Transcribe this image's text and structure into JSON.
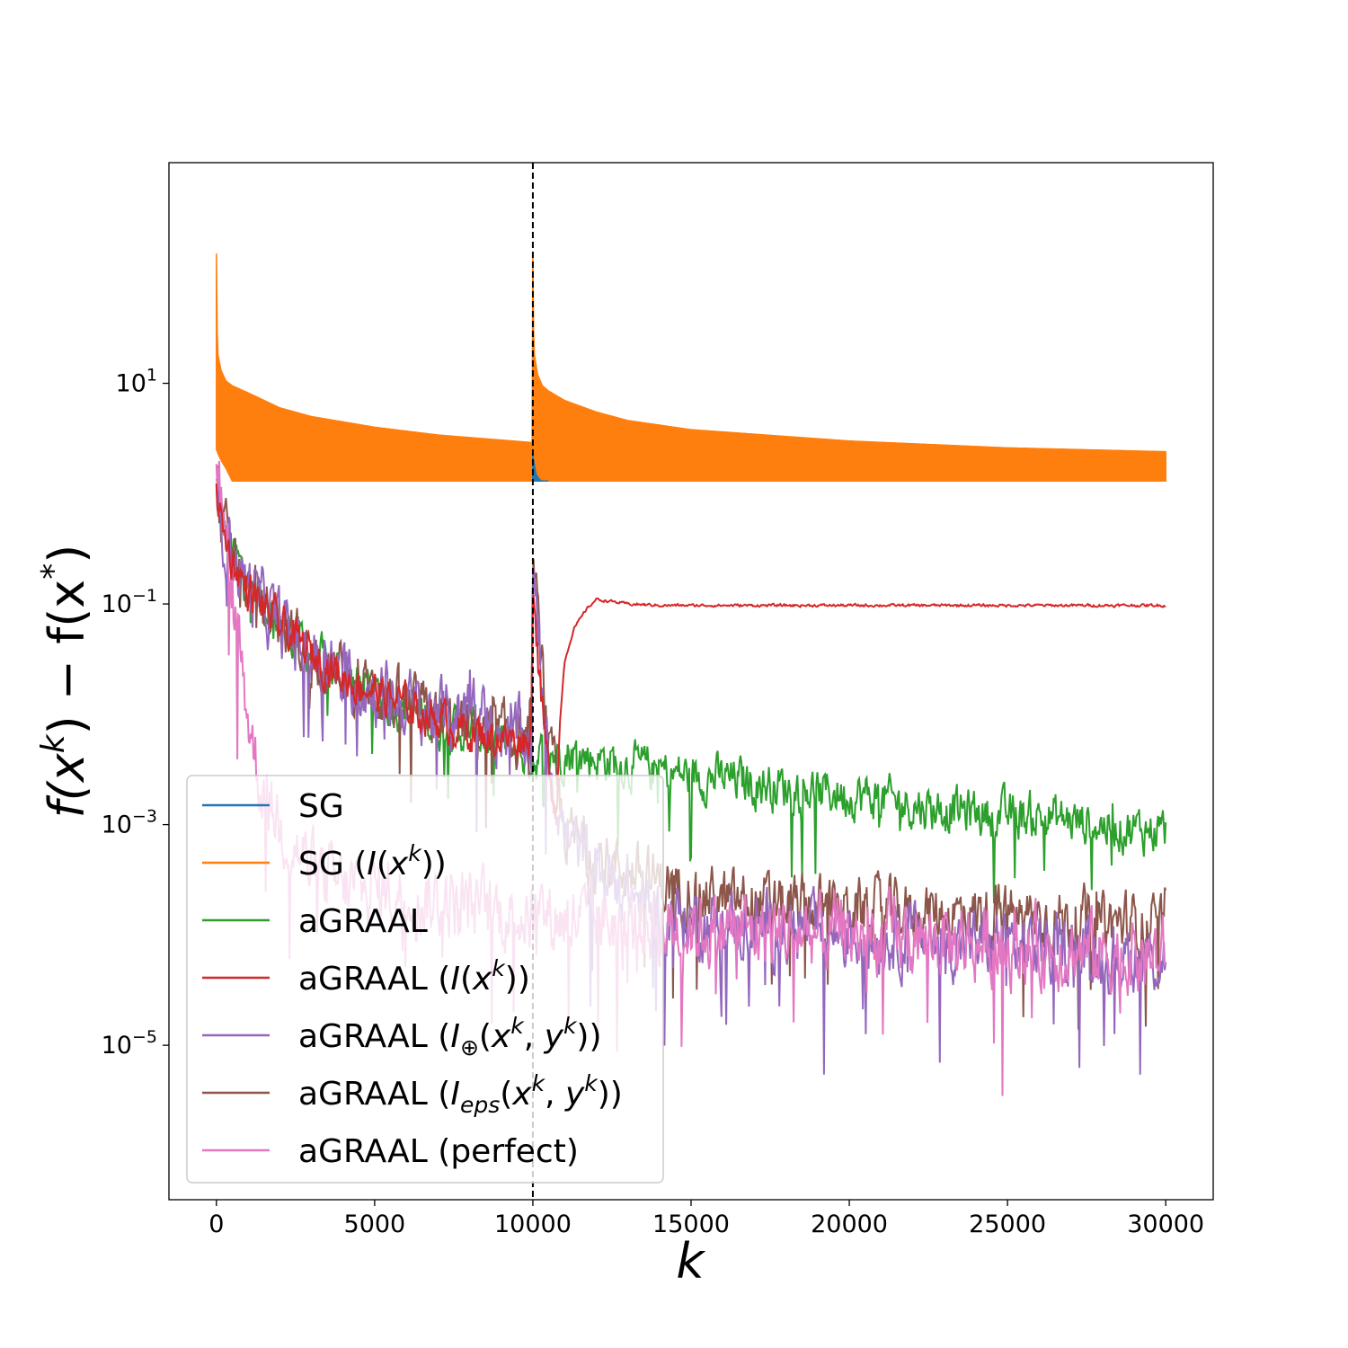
{
  "chart_data": {
    "type": "line",
    "title": "",
    "xlabel": "k",
    "ylabel": "f(x^k) − f(x^*)",
    "yscale": "log",
    "xlim": [
      -1500,
      31500
    ],
    "ylim_exp": [
      -6.4,
      3.0
    ],
    "x_ticks": [
      0,
      5000,
      10000,
      15000,
      20000,
      25000,
      30000
    ],
    "x_tick_labels": [
      "0",
      "5000",
      "10000",
      "15000",
      "20000",
      "25000",
      "30000"
    ],
    "y_ticks_exp": [
      1,
      -1,
      -3,
      -5
    ],
    "y_tick_base": "10",
    "y_tick_exps": [
      "1",
      "−1",
      "−3",
      "−5"
    ],
    "vline_x": 10000,
    "legend_position": "lower-left",
    "series": [
      {
        "key": "sg",
        "name": "SG",
        "color": "#1f77b4",
        "note": "oscillates between upper and lower envelopes; visible only near the restart at k = 10000",
        "x": [
          10000,
          10100,
          10200,
          10300,
          10500
        ],
        "upper": [
          2.2,
          1.5,
          1.35,
          1.3,
          1.3
        ],
        "lower": [
          1.3,
          1.3,
          1.3,
          1.3,
          1.3
        ]
      },
      {
        "key": "sg_i",
        "name": "SG (I(x^k))",
        "color": "#ff7f0e",
        "note": "dense oscillation band between upper and lower envelopes",
        "x": [
          0,
          10,
          50,
          150,
          300,
          500,
          1000,
          2000,
          3000,
          5000,
          7000,
          9999,
          10000,
          10010,
          10050,
          10150,
          10300,
          10500,
          11000,
          12000,
          13000,
          15000,
          20000,
          25000,
          30000
        ],
        "upper": [
          150,
          40,
          18,
          13,
          10.5,
          9.5,
          8.2,
          6,
          5,
          4,
          3.4,
          2.9,
          150,
          40,
          18,
          12,
          9.5,
          8.5,
          7,
          5.5,
          4.6,
          3.8,
          3.0,
          2.6,
          2.4
        ],
        "lower": [
          2.5,
          2.5,
          2.3,
          2.0,
          1.7,
          1.3,
          1.3,
          1.3,
          1.3,
          1.3,
          1.3,
          1.3,
          1.3,
          1.3,
          1.3,
          1.3,
          1.3,
          1.3,
          1.3,
          1.3,
          1.3,
          1.3,
          1.3,
          1.3,
          1.3
        ]
      },
      {
        "key": "agraal",
        "name": "aGRAAL",
        "color": "#2ca02c",
        "x": [
          0,
          200,
          500,
          1000,
          2000,
          3000,
          4000,
          5000,
          6000,
          7000,
          8000,
          9000,
          10000,
          11000,
          12000,
          13000,
          14000,
          15000,
          16000,
          17000,
          18000,
          19000,
          20000,
          21000,
          22000,
          23000,
          24000,
          25000,
          26000,
          27000,
          28000,
          29000,
          30000
        ],
        "y": [
          1.2,
          0.5,
          0.3,
          0.15,
          0.07,
          0.035,
          0.022,
          0.015,
          0.011,
          0.008,
          0.007,
          0.0055,
          0.004,
          0.0045,
          0.004,
          0.0035,
          0.003,
          0.0028,
          0.0026,
          0.0024,
          0.0022,
          0.002,
          0.0019,
          0.0017,
          0.0015,
          0.0014,
          0.0013,
          0.0012,
          0.0012,
          0.0011,
          0.001,
          0.0009,
          0.0009
        ],
        "noise": 0.35
      },
      {
        "key": "agraal_i",
        "name": "aGRAAL (I(x^k))",
        "color": "#d62728",
        "x": [
          0,
          200,
          500,
          1000,
          2000,
          3000,
          4000,
          5000,
          6000,
          7000,
          8000,
          9000,
          9950,
          10000,
          10100,
          10300,
          10500,
          10750,
          10850,
          11000,
          11300,
          11700,
          12000,
          12500,
          13000,
          14000,
          16000,
          20000,
          25000,
          30000
        ],
        "y": [
          1.2,
          0.45,
          0.25,
          0.13,
          0.065,
          0.035,
          0.022,
          0.016,
          0.012,
          0.009,
          0.007,
          0.006,
          0.006,
          0.25,
          0.06,
          0.01,
          0.003,
          0.0015,
          0.008,
          0.03,
          0.06,
          0.09,
          0.11,
          0.105,
          0.1,
          0.097,
          0.097,
          0.097,
          0.097,
          0.097
        ],
        "noise": 0.3,
        "noise_until": 10800
      },
      {
        "key": "agraal_plus",
        "name": "aGRAAL (I⊕(x^k, y^k))",
        "color": "#9467bd",
        "x": [
          0,
          200,
          500,
          1000,
          2000,
          3000,
          4000,
          5000,
          6000,
          7000,
          7800,
          8000,
          8200,
          9000,
          9950,
          10000,
          10200,
          10500,
          11000,
          12000,
          14000,
          16000,
          20000,
          25000,
          30000
        ],
        "y": [
          1.2,
          0.5,
          0.28,
          0.14,
          0.065,
          0.035,
          0.022,
          0.016,
          0.012,
          0.01,
          0.01,
          0.02,
          0.01,
          0.007,
          0.006,
          0.2,
          0.04,
          0.004,
          0.0008,
          0.0004,
          0.00015,
          0.00012,
          0.0001,
          8e-05,
          6e-05
        ],
        "noise": 0.5
      },
      {
        "key": "agraal_eps",
        "name": "aGRAAL (Ieps(x^k, y^k))",
        "color": "#8c564b",
        "x": [
          0,
          200,
          500,
          1000,
          2000,
          3000,
          4000,
          5000,
          6000,
          7000,
          8000,
          9000,
          9950,
          10000,
          10200,
          10500,
          11000,
          12000,
          14000,
          16000,
          20000,
          25000,
          30000
        ],
        "y": [
          1.2,
          0.5,
          0.28,
          0.14,
          0.065,
          0.035,
          0.022,
          0.016,
          0.012,
          0.009,
          0.0075,
          0.0065,
          0.006,
          0.25,
          0.05,
          0.005,
          0.0009,
          0.0005,
          0.0003,
          0.0002,
          0.00017,
          0.00015,
          0.00012
        ],
        "noise": 0.45
      },
      {
        "key": "agraal_perfect",
        "name": "aGRAAL (perfect)",
        "color": "#e377c2",
        "x": [
          0,
          150,
          300,
          500,
          700,
          1000,
          1300,
          1700,
          2500,
          3500,
          5000,
          7000,
          10000,
          14000,
          20000,
          25000,
          30000
        ],
        "y": [
          2.0,
          0.8,
          0.3,
          0.12,
          0.05,
          0.01,
          0.003,
          0.0015,
          0.0006,
          0.0003,
          0.00025,
          0.0002,
          0.00015,
          0.00012,
          0.0001,
          8e-05,
          6e-05
        ],
        "noise": 0.55
      }
    ]
  }
}
